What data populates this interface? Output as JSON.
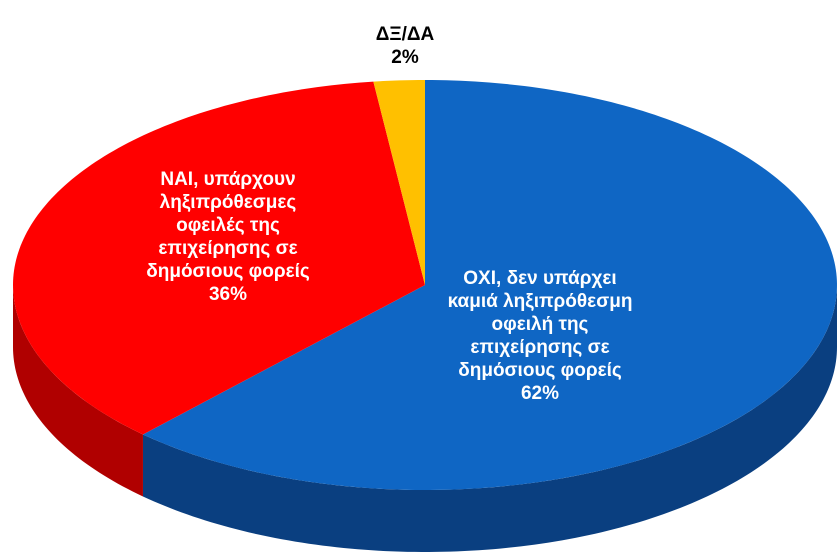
{
  "chart_data": {
    "type": "pie",
    "categories": [
      "ΟΧΙ, δεν υπάρχει καμιά ληξιπρόθεσμη οφειλή της επιχείρησης σε δημόσιους φορείς",
      "ΝΑΙ, υπάρχουν ληξιπρόθεσμες οφειλές της επιχείρησης σε δημόσιους φορείς",
      "ΔΞ/ΔΑ"
    ],
    "values": [
      62,
      36,
      2
    ],
    "value_labels": [
      "62%",
      "36%",
      "2%"
    ],
    "colors": [
      "#0f66c4",
      "#ff0000",
      "#ffc000"
    ],
    "side_colors": [
      "#0a3f80",
      "#b00000",
      "#b08400"
    ]
  }
}
